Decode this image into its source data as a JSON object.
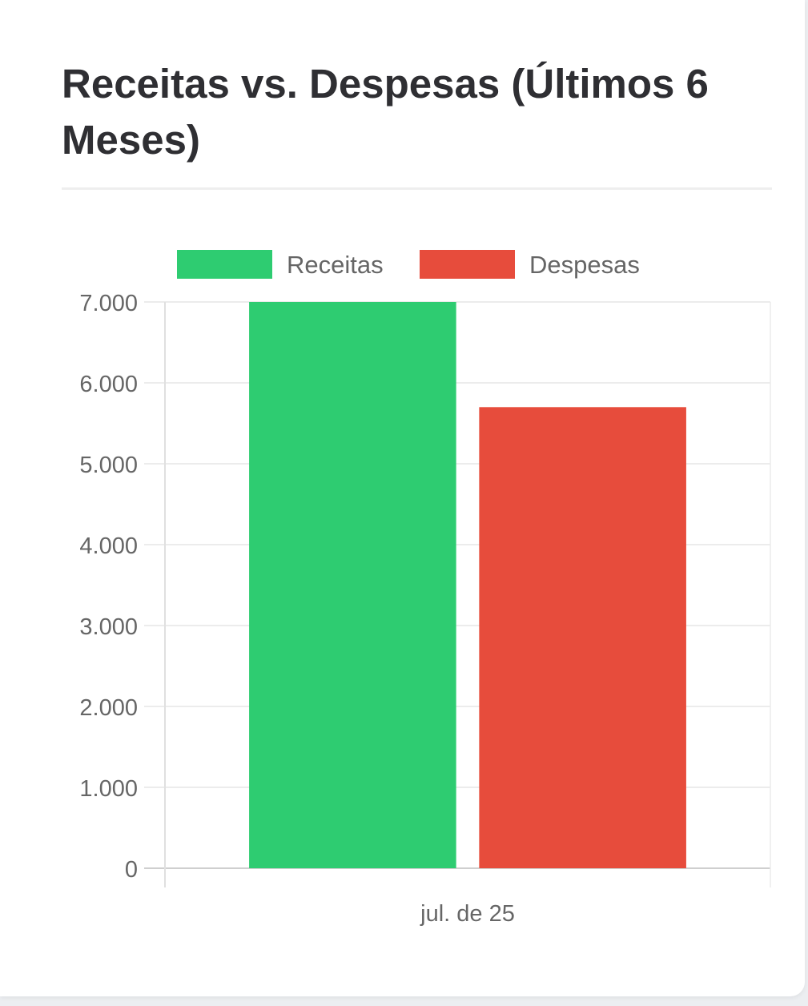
{
  "card": {
    "title": "Receitas vs. Despesas (Últimos 6 Meses)"
  },
  "chart_data": {
    "type": "bar",
    "categories": [
      "jul. de 25"
    ],
    "series": [
      {
        "name": "Receitas",
        "values": [
          7000
        ],
        "color": "#2ecc71"
      },
      {
        "name": "Despesas",
        "values": [
          5700
        ],
        "color": "#e74c3c"
      }
    ],
    "yticks": [
      "0",
      "1.000",
      "2.000",
      "3.000",
      "4.000",
      "5.000",
      "6.000",
      "7.000"
    ],
    "ylim": [
      0,
      7000
    ],
    "grid": true,
    "legend": "top"
  }
}
